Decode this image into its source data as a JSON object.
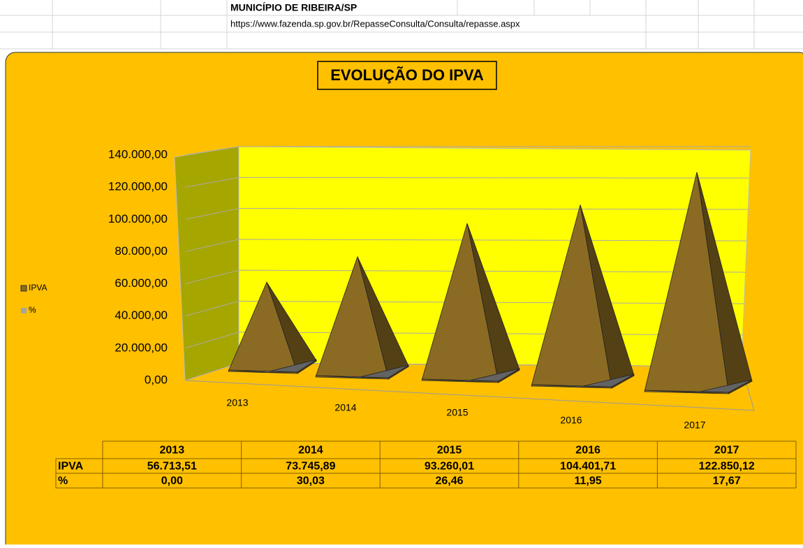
{
  "header": {
    "title": "MUNICÍPIO DE RIBEIRA/SP",
    "url": "https://www.fazenda.sp.gov.br/RepasseConsulta/Consulta/repasse.aspx"
  },
  "chart_data": {
    "type": "pyramid3d",
    "title": "EVOLUÇÃO DO IPVA",
    "categories": [
      "2013",
      "2014",
      "2015",
      "2016",
      "2017"
    ],
    "series": [
      {
        "name": "IPVA",
        "color": "#8B6B23",
        "values": [
          56713.51,
          73745.89,
          93260.01,
          104401.71,
          122850.12
        ],
        "value_labels": [
          "56.713,51",
          "73.745,89",
          "93.260,01",
          "104.401,71",
          "122.850,12"
        ]
      },
      {
        "name": "%",
        "color": "#A5A5A5",
        "values": [
          0,
          30.03,
          26.46,
          11.95,
          17.67
        ],
        "value_labels": [
          "0,00",
          "30,03",
          "26,46",
          "11,95",
          "17,67"
        ]
      }
    ],
    "ylim": [
      0,
      140000
    ],
    "yticks": [
      {
        "value": 0,
        "label": "0,00"
      },
      {
        "value": 20000,
        "label": "20.000,00"
      },
      {
        "value": 40000,
        "label": "40.000,00"
      },
      {
        "value": 60000,
        "label": "60.000,00"
      },
      {
        "value": 80000,
        "label": "80.000,00"
      },
      {
        "value": 100000,
        "label": "100.000,00"
      },
      {
        "value": 120000,
        "label": "120.000,00"
      },
      {
        "value": 140000,
        "label": "140.000,00"
      }
    ],
    "grid": true,
    "legend": "left"
  }
}
